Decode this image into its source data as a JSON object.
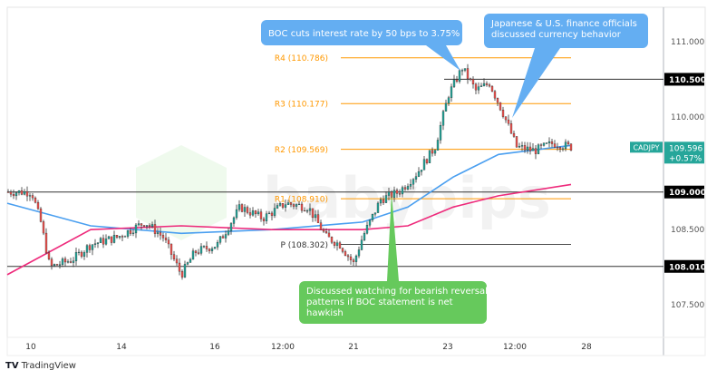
{
  "symbol": "CADJPY",
  "last_price": "109.596",
  "change_pct": "+0.57%",
  "footer": {
    "brand": "TradingView",
    "logo": "tradingview-logo-icon"
  },
  "watermark": "babypips",
  "colors": {
    "up": "#26a69a",
    "down": "#ef5350",
    "wick": "#333333",
    "pivot": "#ff9800",
    "sma_fast": "#4a9ff0",
    "sma_slow": "#ee2a7b",
    "callout_blue": "#64aef2",
    "callout_green": "#66c95c",
    "symbol_tag": "#26a69a"
  },
  "chart_data": {
    "type": "candlestick",
    "title": "",
    "x_ticks": [
      "10",
      "14",
      "16",
      "12:00",
      "21",
      "23",
      "12:00",
      "28"
    ],
    "y_ticks": [
      "111.000",
      "110.000",
      "108.500",
      "107.500"
    ],
    "ylim": [
      107.15,
      111.45
    ],
    "grid": false,
    "price_path": [
      109.0,
      109.0,
      108.6,
      108.0,
      108.1,
      108.3,
      108.4,
      108.6,
      108.4,
      107.9,
      108.2,
      108.3,
      108.8,
      108.65,
      108.85,
      108.8,
      108.4,
      108.3,
      108.05,
      108.4,
      108.9,
      109.0,
      109.25,
      109.6,
      110.3,
      110.65,
      110.35,
      110.45,
      110.05,
      109.6,
      109.55,
      109.65,
      109.6
    ],
    "moving_averages": [
      {
        "color": "#4a9ff0",
        "values": [
          108.85,
          108.55,
          108.45,
          108.5,
          108.6,
          108.8,
          109.2,
          109.5,
          109.62
        ]
      },
      {
        "color": "#ee2a7b",
        "values": [
          107.9,
          108.5,
          108.55,
          108.5,
          108.5,
          108.55,
          108.8,
          108.95,
          109.1
        ]
      }
    ],
    "horizontal_levels": [
      {
        "label": "110.500",
        "price": 110.5
      },
      {
        "label": "109.000",
        "price": 109.0
      },
      {
        "label": "108.010",
        "price": 108.01
      }
    ],
    "pivots": [
      {
        "label": "R4 (110.786)",
        "price": 110.786,
        "kind": "resistance"
      },
      {
        "label": "R3 (110.177)",
        "price": 110.177,
        "kind": "resistance"
      },
      {
        "label": "R2 (109.569)",
        "price": 109.569,
        "kind": "resistance"
      },
      {
        "label": "R1 (108.910)",
        "price": 108.91,
        "kind": "resistance"
      },
      {
        "label": "P (108.302)",
        "price": 108.302,
        "kind": "pivot"
      }
    ],
    "annotations": [
      {
        "text": [
          "BOC cuts interest rate by 50 bps to 3.75%"
        ],
        "color": "blue"
      },
      {
        "text": [
          "Japanese & U.S. finance officials",
          "discussed currency behavior"
        ],
        "color": "blue"
      },
      {
        "text": [
          "Discussed watching for bearish reversal",
          "patterns if BOC statement is net",
          "hawkish"
        ],
        "color": "green"
      }
    ]
  }
}
